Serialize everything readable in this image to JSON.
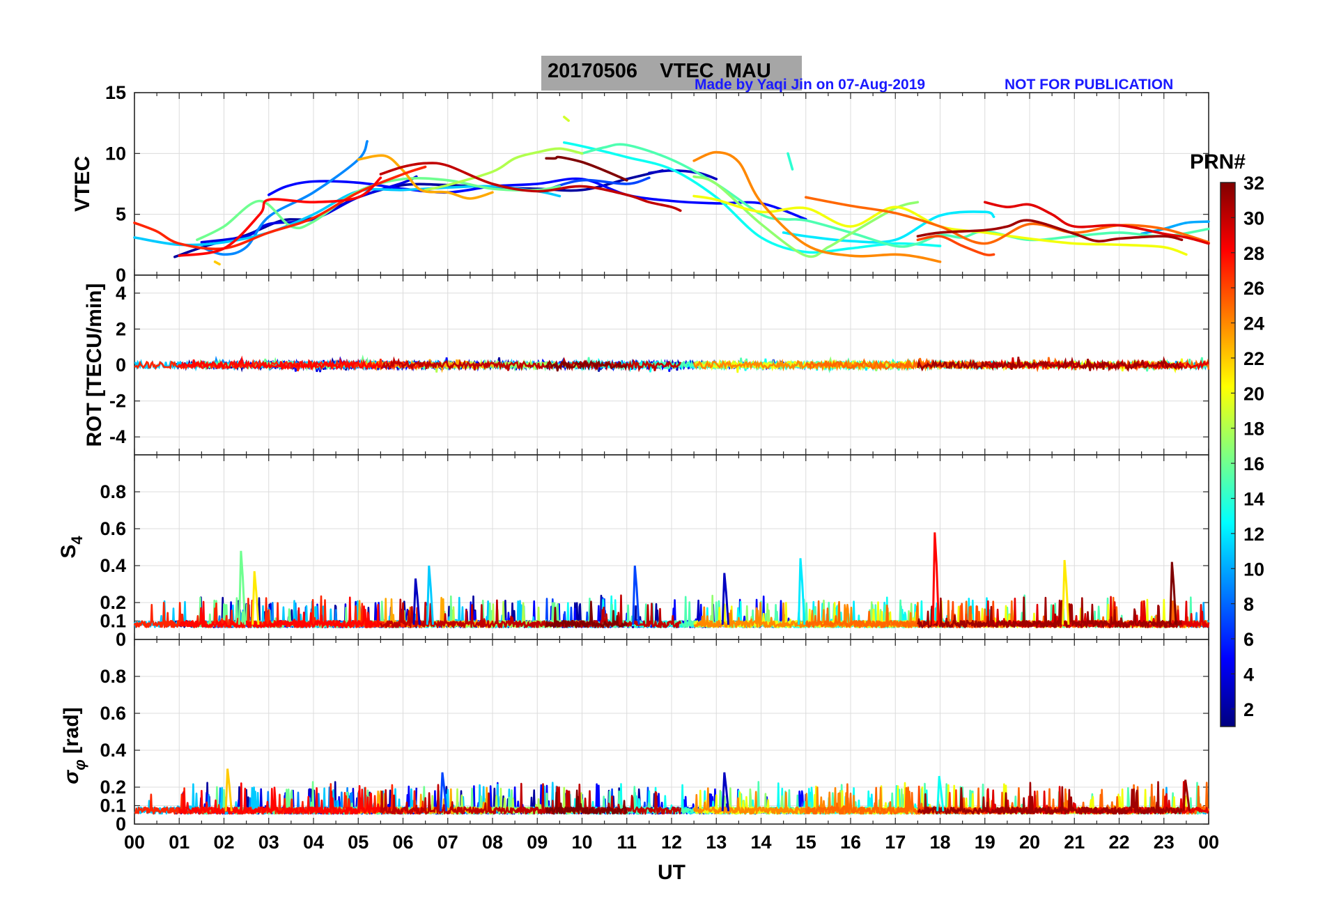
{
  "header": {
    "title": "20170506    VTEC  MAU",
    "credit": "Made by Yaqi Jin on 07-Aug-2019",
    "notice": "NOT FOR PUBLICATION"
  },
  "x_axis": {
    "label": "UT",
    "range": [
      0,
      24
    ],
    "tick_labels": [
      "00",
      "01",
      "02",
      "03",
      "04",
      "05",
      "06",
      "07",
      "08",
      "09",
      "10",
      "11",
      "12",
      "13",
      "14",
      "15",
      "16",
      "17",
      "18",
      "19",
      "20",
      "21",
      "22",
      "23",
      "00"
    ]
  },
  "colorbar": {
    "label": "PRN#",
    "range": [
      1,
      32
    ],
    "tick_labels": [
      "2",
      "4",
      "6",
      "8",
      "10",
      "12",
      "14",
      "16",
      "18",
      "20",
      "22",
      "24",
      "26",
      "28",
      "30",
      "32"
    ],
    "colormap": "jet"
  },
  "chart_data": [
    {
      "type": "line",
      "panel": "vtec",
      "ylabel": "VTEC",
      "ylim": [
        0,
        15
      ],
      "yticks": [
        "0",
        "5",
        "10",
        "15"
      ],
      "series": [
        {
          "prn": 2,
          "x": [
            0.9,
            1.6,
            2.5,
            3.3,
            4.0,
            5.0,
            6.0,
            7.0,
            8.0,
            9.0,
            10.0,
            11.0,
            11.8
          ],
          "y": [
            1.5,
            2.4,
            3.3,
            4.5,
            4.7,
            6.4,
            7.4,
            7.4,
            7.2,
            7.1,
            7.0,
            7.9,
            8.6
          ]
        },
        {
          "prn": 3,
          "x": [
            11.5,
            12.0,
            12.6,
            13.0
          ],
          "y": [
            8.4,
            8.6,
            8.4,
            7.9
          ]
        },
        {
          "prn": 4,
          "x": [
            1.5,
            2.5,
            3.0,
            4.0,
            5.0,
            6.0,
            6.3
          ],
          "y": [
            2.7,
            3.2,
            4.2,
            4.6,
            6.4,
            7.6,
            8.1
          ]
        },
        {
          "prn": 5,
          "x": [
            3.0,
            3.4,
            4.0,
            5.0,
            6.0,
            7.0,
            8.0,
            9.0,
            10.0,
            11.0,
            12.0,
            13.0,
            14.0,
            15.0
          ],
          "y": [
            6.6,
            7.3,
            7.7,
            7.6,
            7.1,
            6.8,
            7.3,
            7.5,
            7.9,
            6.6,
            6.1,
            5.9,
            5.9,
            4.6
          ]
        },
        {
          "prn": 7,
          "x": [
            9.2,
            10.0,
            11.0,
            11.5
          ],
          "y": [
            7.0,
            7.8,
            7.5,
            8.0
          ]
        },
        {
          "prn": 9,
          "x": [
            1.5,
            2.0,
            2.5,
            3.0,
            4.0,
            5.0,
            5.2
          ],
          "y": [
            2.3,
            1.7,
            2.3,
            4.8,
            6.8,
            9.5,
            11.0
          ]
        },
        {
          "prn": 10,
          "x": [
            22.5,
            23.0,
            23.5,
            24.0
          ],
          "y": [
            3.4,
            3.8,
            4.3,
            4.4
          ]
        },
        {
          "prn": 11,
          "x": [
            0,
            1.0,
            2.0,
            3.0,
            4.0,
            5.0,
            6.0,
            7.0,
            8.0,
            9.0,
            9.5
          ],
          "y": [
            3.1,
            2.5,
            2.7,
            3.5,
            5.0,
            6.9,
            7.0,
            7.2,
            7.3,
            6.9,
            6.5
          ]
        },
        {
          "prn": 12,
          "x": [
            14.5,
            15.0,
            16.0,
            17.0,
            18.0,
            19.0,
            19.2
          ],
          "y": [
            3.5,
            3.2,
            2.8,
            2.9,
            4.9,
            5.2,
            4.8
          ]
        },
        {
          "prn": 13,
          "x": [
            9.6,
            10.0,
            11.0,
            12.0,
            13.0,
            14.0,
            15.0,
            16.0,
            17.0,
            18.0
          ],
          "y": [
            10.9,
            10.6,
            9.7,
            8.7,
            6.4,
            3.1,
            1.9,
            2.2,
            2.6,
            2.4
          ]
        },
        {
          "prn": 14,
          "x": [
            14.6,
            14.7
          ],
          "y": [
            10.0,
            8.7
          ]
        },
        {
          "prn": 15,
          "x": [
            10.0,
            10.5,
            11.0,
            12.0,
            13.0,
            14.0,
            14.5,
            15.0,
            16.0,
            17.0,
            17.5,
            18.0,
            18.5,
            19.0,
            20.0,
            21.0,
            22.0,
            23.0,
            24.0
          ],
          "y": [
            10.0,
            10.5,
            10.7,
            9.5,
            7.5,
            5.0,
            4.6,
            4.5,
            3.5,
            2.4,
            2.6,
            3.3,
            3.1,
            3.6,
            2.9,
            3.2,
            3.5,
            3.2,
            3.8
          ]
        },
        {
          "prn": 16,
          "x": [
            1.4,
            2.0,
            2.8,
            3.5,
            4.0,
            5.0,
            6.0,
            7.0,
            8.0,
            9.0,
            9.5
          ],
          "y": [
            2.9,
            4.0,
            6.1,
            4.0,
            4.4,
            6.9,
            7.9,
            7.8,
            7.1,
            7.0,
            7.3
          ]
        },
        {
          "prn": 17,
          "x": [
            12.5,
            13.0,
            14.0,
            15.0,
            15.5,
            16.0,
            17.0,
            17.5
          ],
          "y": [
            8.1,
            7.5,
            4.2,
            1.6,
            2.3,
            3.4,
            5.5,
            6.0
          ]
        },
        {
          "prn": 18,
          "x": [
            6.5,
            7.0,
            8.0,
            8.5,
            9.0,
            9.5,
            10.0
          ],
          "y": [
            7.0,
            7.4,
            8.5,
            9.6,
            10.1,
            10.4,
            10.0
          ]
        },
        {
          "prn": 19,
          "x": [
            9.6,
            9.7
          ],
          "y": [
            13.0,
            12.7
          ]
        },
        {
          "prn": 20,
          "x": [
            12.5,
            13.0,
            14.0,
            15.0,
            16.0,
            17.0,
            18.0,
            19.0,
            20.0,
            21.0,
            22.0,
            23.0,
            23.5
          ],
          "y": [
            6.5,
            6.2,
            5.2,
            5.5,
            4.0,
            5.6,
            4.0,
            3.5,
            3.0,
            2.6,
            2.5,
            2.3,
            1.7
          ]
        },
        {
          "prn": 22,
          "x": [
            1.8,
            1.9
          ],
          "y": [
            1.1,
            0.9
          ]
        },
        {
          "prn": 23,
          "x": [
            5.0,
            5.6,
            6.0,
            6.4,
            7.0,
            7.5,
            8.0
          ],
          "y": [
            9.5,
            9.8,
            8.6,
            7.0,
            6.8,
            6.3,
            6.8
          ]
        },
        {
          "prn": 24,
          "x": [
            12.5,
            13.0,
            13.5,
            14.0,
            15.0,
            16.0,
            17.0,
            17.5,
            18.0
          ],
          "y": [
            9.4,
            10.1,
            9.3,
            6.0,
            2.5,
            1.6,
            1.7,
            1.5,
            1.1
          ]
        },
        {
          "prn": 25,
          "x": [
            15.0,
            16.0,
            17.0,
            18.0,
            19.0,
            20.0,
            21.0,
            22.0,
            23.0,
            24.0
          ],
          "y": [
            6.4,
            5.7,
            5.1,
            4.0,
            2.6,
            4.2,
            3.5,
            4.1,
            3.8,
            2.7
          ]
        },
        {
          "prn": 26,
          "x": [
            17.5,
            18.0,
            18.5,
            19.0,
            19.2
          ],
          "y": [
            2.9,
            3.2,
            2.4,
            1.7,
            1.7
          ]
        },
        {
          "prn": 27,
          "x": [
            0,
            0.5,
            1.0,
            2.0,
            3.0,
            4.0,
            5.0,
            6.0,
            6.5
          ],
          "y": [
            4.3,
            3.6,
            2.6,
            2.2,
            3.5,
            4.7,
            6.8,
            8.3,
            8.9
          ]
        },
        {
          "prn": 28,
          "x": [
            1.0,
            2.0,
            2.8,
            3.0,
            4.0,
            5.0,
            5.5
          ],
          "y": [
            1.6,
            2.2,
            5.0,
            6.2,
            6.0,
            6.4,
            8.0
          ]
        },
        {
          "prn": 29,
          "x": [
            19.0,
            19.5,
            20.0,
            20.5,
            21.0,
            22.0,
            23.0,
            23.5,
            24.0
          ],
          "y": [
            6.0,
            5.6,
            5.8,
            5.0,
            4.0,
            4.1,
            3.4,
            3.1,
            2.6
          ]
        },
        {
          "prn": 30,
          "x": [
            5.5,
            6.0,
            6.5,
            7.0,
            8.0,
            9.0,
            10.0,
            11.0,
            11.5,
            12.0,
            12.2
          ],
          "y": [
            8.3,
            8.9,
            9.2,
            9.0,
            7.5,
            6.9,
            7.3,
            6.6,
            6.0,
            5.6,
            5.3
          ]
        },
        {
          "prn": 31,
          "x": [
            17.5,
            18.0,
            19.0,
            19.5,
            20.0,
            21.0,
            21.5,
            22.0,
            23.0,
            23.4
          ],
          "y": [
            3.2,
            3.5,
            3.7,
            4.0,
            4.5,
            3.4,
            2.8,
            3.0,
            3.2,
            2.9
          ]
        },
        {
          "prn": 32,
          "x": [
            9.2,
            9.4,
            9.5,
            10.0,
            10.5,
            11.0
          ],
          "y": [
            9.6,
            9.6,
            9.7,
            9.3,
            8.6,
            7.8
          ]
        }
      ]
    },
    {
      "type": "line",
      "panel": "rot",
      "ylabel": "ROT [TECU/min]",
      "ylim": [
        -5,
        5
      ],
      "yticks": [
        "-4",
        "-2",
        "0",
        "2",
        "4"
      ],
      "series_prns": [
        2,
        9,
        11,
        13,
        16,
        18,
        20,
        23,
        25,
        27,
        30,
        31,
        32
      ],
      "note_values": "ROT values for all PRNs fluctuate between approximately -0.5 and 0.5 TECU/min"
    },
    {
      "type": "line",
      "panel": "s4",
      "ylabel": "S4",
      "ylim": [
        0,
        1
      ],
      "yticks": [
        "0",
        "0.1",
        "0.2",
        "0.4",
        "0.6",
        "0.8"
      ],
      "baseline": 0.08,
      "notable_peaks": [
        {
          "prn": 16,
          "x": 2.4,
          "y": 0.48
        },
        {
          "prn": 21,
          "x": 2.7,
          "y": 0.37
        },
        {
          "prn": 3,
          "x": 6.3,
          "y": 0.33
        },
        {
          "prn": 11,
          "x": 6.6,
          "y": 0.4
        },
        {
          "prn": 7,
          "x": 11.2,
          "y": 0.4
        },
        {
          "prn": 3,
          "x": 13.2,
          "y": 0.36
        },
        {
          "prn": 12,
          "x": 14.9,
          "y": 0.44
        },
        {
          "prn": 28,
          "x": 17.9,
          "y": 0.58
        },
        {
          "prn": 21,
          "x": 20.8,
          "y": 0.43
        },
        {
          "prn": 32,
          "x": 23.2,
          "y": 0.42
        }
      ]
    },
    {
      "type": "line",
      "panel": "sigma_phi",
      "ylabel": "σ_φ [rad]",
      "ylim": [
        0,
        1
      ],
      "yticks": [
        "0",
        "0.1",
        "0.2",
        "0.4",
        "0.6",
        "0.8"
      ],
      "baseline": 0.07,
      "notable_peaks": [
        {
          "prn": 22,
          "x": 2.1,
          "y": 0.3
        },
        {
          "prn": 7,
          "x": 6.9,
          "y": 0.28
        },
        {
          "prn": 3,
          "x": 13.2,
          "y": 0.28
        },
        {
          "prn": 13,
          "x": 18.0,
          "y": 0.26
        },
        {
          "prn": 31,
          "x": 23.5,
          "y": 0.24
        }
      ]
    }
  ]
}
